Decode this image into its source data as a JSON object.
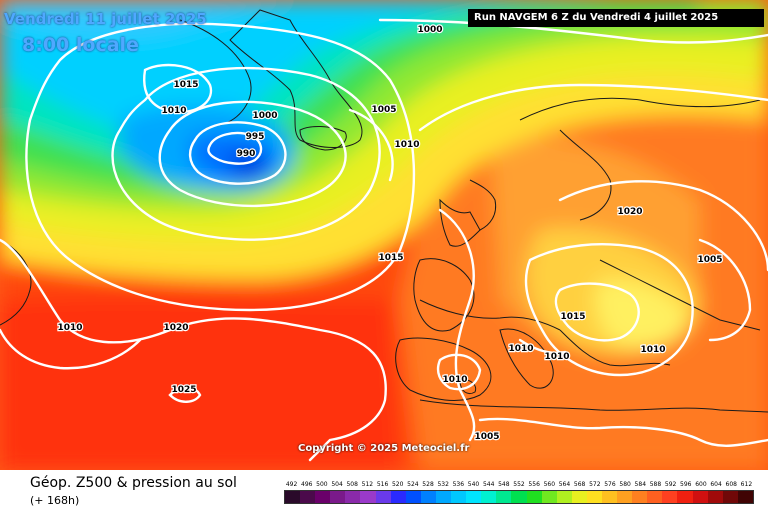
{
  "header": {
    "date": "Vendredi 11 juillet 2025",
    "time": "8:00 locale",
    "run": "Run NAVGEM 6 Z du Vendredi 4 juillet 2025"
  },
  "copyright": "Copyright © 2025 Meteociel.fr",
  "footer": {
    "product": "Géop. Z500 & pression au sol",
    "forecast": "(+ 168h)"
  },
  "isobar_labels": [
    "1000",
    "1015",
    "1010",
    "1000",
    "1005",
    "995",
    "1010",
    "990",
    "1020",
    "1015",
    "1005",
    "1010",
    "1020",
    "1015",
    "1010",
    "1010",
    "1010",
    "1025",
    "1010",
    "1005"
  ],
  "scale": {
    "labels": [
      "492",
      "496",
      "500",
      "504",
      "508",
      "512",
      "516",
      "520",
      "524",
      "528",
      "532",
      "536",
      "540",
      "544",
      "548",
      "552",
      "556",
      "560",
      "564",
      "568",
      "572",
      "576",
      "580",
      "584",
      "588",
      "592",
      "596",
      "600",
      "604",
      "608",
      "612"
    ],
    "colors": [
      "#2a0a2a",
      "#4b0a4b",
      "#6a006a",
      "#7a1a8a",
      "#8a2aaa",
      "#9a3aca",
      "#6a3aea",
      "#2a2aff",
      "#0050ff",
      "#0080ff",
      "#00a8ff",
      "#00c8ff",
      "#00e4ff",
      "#00f0d0",
      "#00e890",
      "#00e050",
      "#20e020",
      "#70e820",
      "#b0f020",
      "#e8f020",
      "#ffe020",
      "#ffc020",
      "#ffa020",
      "#ff8020",
      "#ff6020",
      "#ff4020",
      "#f02010",
      "#d01010",
      "#a00a0a",
      "#700808",
      "#400404"
    ]
  }
}
